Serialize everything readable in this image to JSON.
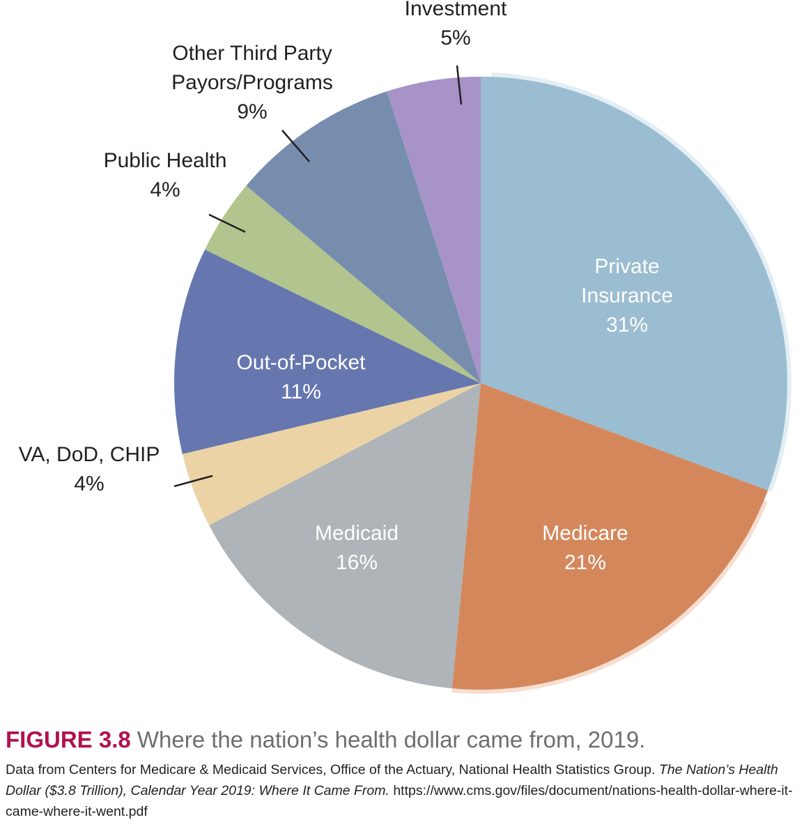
{
  "chart_data": {
    "type": "pie",
    "start_angle_deg": 0,
    "direction": "clockwise",
    "slices": [
      {
        "label_lines": [
          "Private",
          "Insurance"
        ],
        "value": 31,
        "value_label": "31%",
        "color": "#9bbdd2",
        "label_color": "#ffffff",
        "label_position": "inside"
      },
      {
        "label_lines": [
          "Medicare"
        ],
        "value": 21,
        "value_label": "21%",
        "color": "#d5875c",
        "label_color": "#ffffff",
        "label_position": "inside"
      },
      {
        "label_lines": [
          "Medicaid"
        ],
        "value": 16,
        "value_label": "16%",
        "color": "#aeb4b7",
        "label_color": "#ffffff",
        "label_position": "inside"
      },
      {
        "label_lines": [
          "VA, DoD, CHIP"
        ],
        "value": 4,
        "value_label": "4%",
        "color": "#ebd3a6",
        "label_color": "#231f20",
        "label_position": "outside"
      },
      {
        "label_lines": [
          "Out-of-Pocket"
        ],
        "value": 11,
        "value_label": "11%",
        "color": "#6677b0",
        "label_color": "#ffffff",
        "label_position": "inside"
      },
      {
        "label_lines": [
          "Public Health"
        ],
        "value": 4,
        "value_label": "4%",
        "color": "#b3c58e",
        "label_color": "#231f20",
        "label_position": "outside"
      },
      {
        "label_lines": [
          "Other Third Party",
          "Payors/Programs"
        ],
        "value": 9,
        "value_label": "9%",
        "color": "#778dae",
        "label_color": "#231f20",
        "label_position": "outside"
      },
      {
        "label_lines": [
          "Investment"
        ],
        "value": 5,
        "value_label": "5%",
        "color": "#a793c8",
        "label_color": "#231f20",
        "label_position": "outside"
      }
    ]
  },
  "figure": {
    "label": "FIGURE 3.8",
    "title": "Where the nation’s health dollar came from, 2019.",
    "source_pre": "Data from Centers for Medicare & Medicaid Services, Office of the Actuary, National Health Statistics Group. ",
    "source_italic": "The Nation’s Health Dollar ($3.8 Trillion), Calendar Year 2019: Where It Came From.",
    "source_post": " https://www.cms.gov/files/document/nations-health-dollar-where-it-came-where-it-went.pdf"
  }
}
